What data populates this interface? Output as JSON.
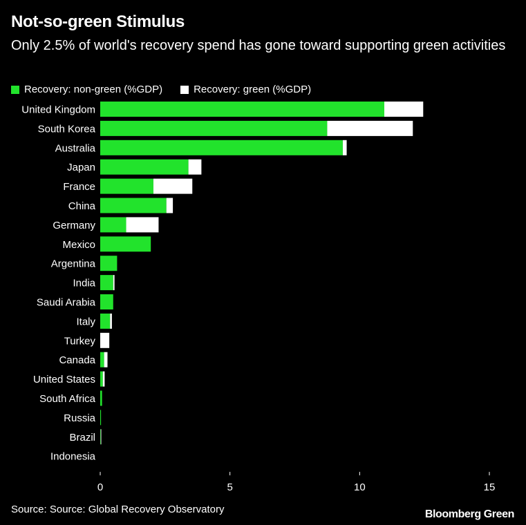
{
  "header": {
    "title": "Not-so-green Stimulus",
    "subtitle": "Only 2.5% of world's recovery spend has gone toward supporting green activities"
  },
  "footer": {
    "source": "Source: Source: Global Recovery Observatory",
    "brand": "Bloomberg Green"
  },
  "colors": {
    "background": "#000000",
    "non_green": "#22e32c",
    "green": "#ffffff",
    "text": "#ffffff"
  },
  "chart_data": {
    "type": "bar",
    "orientation": "horizontal",
    "stacked": true,
    "categories": [
      "United Kingdom",
      "South Korea",
      "Australia",
      "Japan",
      "France",
      "China",
      "Germany",
      "Mexico",
      "Argentina",
      "India",
      "Saudi Arabia",
      "Italy",
      "Turkey",
      "Canada",
      "United States",
      "South Africa",
      "Russia",
      "Brazil",
      "Indonesia"
    ],
    "series": [
      {
        "name": "Recovery: non-green (%GDP)",
        "color": "#22e32c",
        "values": [
          10.95,
          8.75,
          9.35,
          3.4,
          2.05,
          2.55,
          1.0,
          1.95,
          0.65,
          0.5,
          0.5,
          0.38,
          0.0,
          0.15,
          0.1,
          0.07,
          0.03,
          0.02,
          0.0
        ]
      },
      {
        "name": "Recovery: green (%GDP)",
        "color": "#ffffff",
        "values": [
          1.5,
          3.3,
          0.15,
          0.5,
          1.5,
          0.25,
          1.25,
          0.0,
          0.0,
          0.05,
          0.0,
          0.07,
          0.35,
          0.13,
          0.07,
          0.0,
          0.0,
          0.02,
          0.0
        ]
      }
    ],
    "xlim": [
      0,
      15
    ],
    "xticks": [
      0,
      5,
      10,
      15
    ],
    "legend": "top-left",
    "grid": false
  }
}
